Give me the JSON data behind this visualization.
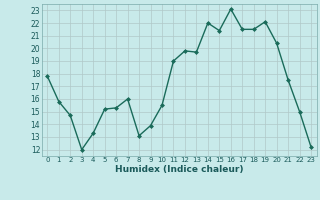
{
  "x": [
    0,
    1,
    2,
    3,
    4,
    5,
    6,
    7,
    8,
    9,
    10,
    11,
    12,
    13,
    14,
    15,
    16,
    17,
    18,
    19,
    20,
    21,
    22,
    23
  ],
  "y": [
    17.8,
    15.8,
    14.7,
    12.0,
    13.3,
    15.2,
    15.3,
    16.0,
    13.1,
    13.9,
    15.5,
    19.0,
    19.8,
    19.7,
    22.0,
    21.4,
    23.1,
    21.5,
    21.5,
    22.1,
    20.4,
    17.5,
    15.0,
    12.2
  ],
  "line_color": "#1a6b5a",
  "marker": "D",
  "marker_size": 2.0,
  "bg_color": "#c8eaea",
  "grid_color": "#b0c8c8",
  "xlabel": "Humidex (Indice chaleur)",
  "xlim": [
    -0.5,
    23.5
  ],
  "ylim": [
    11.5,
    23.5
  ],
  "yticks": [
    12,
    13,
    14,
    15,
    16,
    17,
    18,
    19,
    20,
    21,
    22,
    23
  ],
  "xticks": [
    0,
    1,
    2,
    3,
    4,
    5,
    6,
    7,
    8,
    9,
    10,
    11,
    12,
    13,
    14,
    15,
    16,
    17,
    18,
    19,
    20,
    21,
    22,
    23
  ]
}
